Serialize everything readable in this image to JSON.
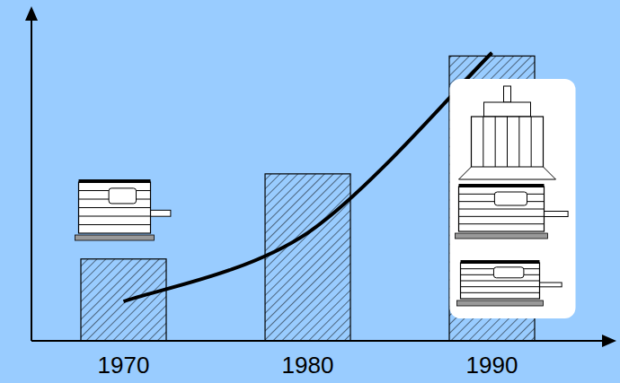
{
  "chart_data": {
    "type": "bar",
    "categories": [
      "1970",
      "1980",
      "1990"
    ],
    "ylim": [
      0,
      100
    ],
    "tick_labels": "x",
    "series": [
      {
        "type": "bar",
        "color": "#99ccff",
        "values": [
          25,
          51,
          87
        ]
      },
      {
        "type": "line",
        "color": "#000000",
        "values": [
          12,
          33,
          88
        ]
      }
    ]
  }
}
